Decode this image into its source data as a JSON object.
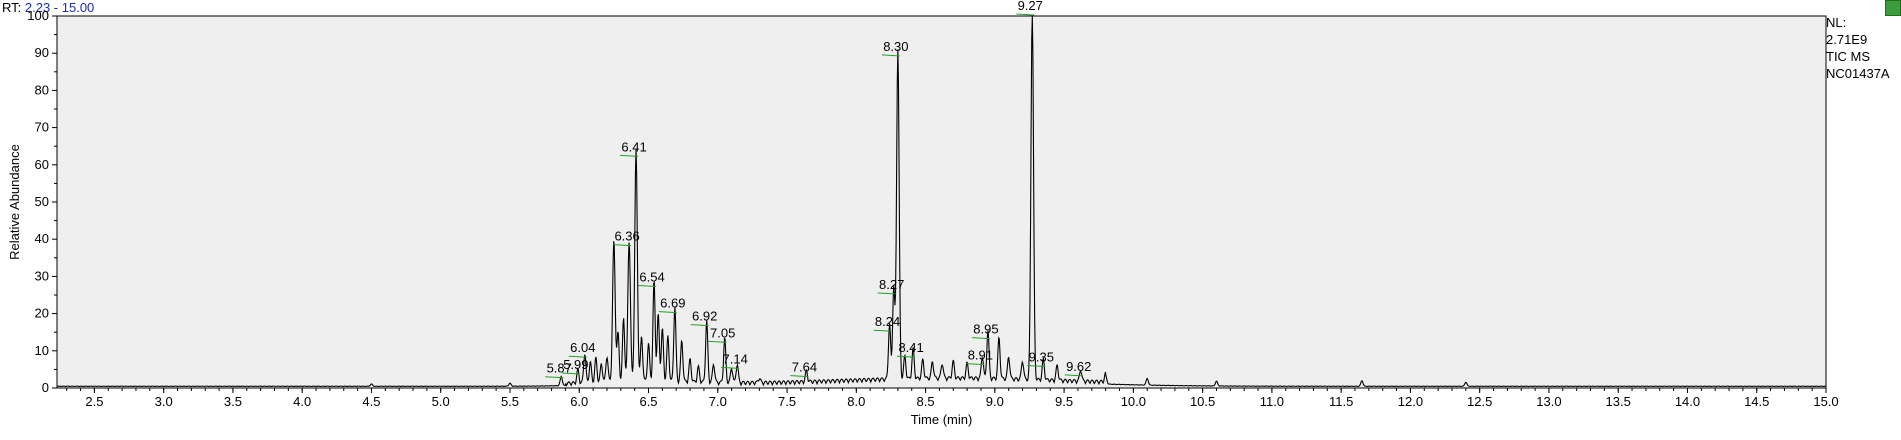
{
  "header": {
    "rt_prefix": "RT:",
    "rt_range": "2.23 - 15.00"
  },
  "side_info": {
    "line1": "NL:",
    "line2": "2.71E9",
    "line3": "TIC  MS",
    "line4": "NC01437A"
  },
  "chart_data": {
    "type": "line",
    "title": "",
    "xlabel": "Time (min)",
    "ylabel": "Relative Abundance",
    "xlim": [
      2.23,
      15.0
    ],
    "ylim": [
      0,
      100
    ],
    "xticks": [
      2.5,
      3.0,
      3.5,
      4.0,
      4.5,
      5.0,
      5.5,
      6.0,
      6.5,
      7.0,
      7.5,
      8.0,
      8.5,
      9.0,
      9.5,
      10.0,
      10.5,
      11.0,
      11.5,
      12.0,
      12.5,
      13.0,
      13.5,
      14.0,
      14.5,
      15.0
    ],
    "xtick_labels": [
      "2.5",
      "3.0",
      "3.5",
      "4.0",
      "4.5",
      "5.0",
      "5.5",
      "6.0",
      "6.5",
      "7.0",
      "7.5",
      "8.0",
      "8.5",
      "9.0",
      "9.5",
      "10.0",
      "10.5",
      "11.0",
      "11.5",
      "12.0",
      "12.5",
      "13.0",
      "13.5",
      "14.0",
      "14.5",
      "15.0"
    ],
    "yticks": [
      0,
      10,
      20,
      30,
      40,
      50,
      60,
      70,
      80,
      90,
      100
    ],
    "ytick_labels": [
      "0",
      "10",
      "20",
      "30",
      "40",
      "50",
      "60",
      "70",
      "80",
      "90",
      "100"
    ],
    "baseline": 0.4,
    "peaks": [
      {
        "rt": 4.5,
        "height": 0.6
      },
      {
        "rt": 5.5,
        "height": 0.8
      },
      {
        "rt": 5.87,
        "height": 2.5
      },
      {
        "rt": 5.99,
        "height": 3.5
      },
      {
        "rt": 6.04,
        "height": 8.0
      },
      {
        "rt": 6.08,
        "height": 5.5
      },
      {
        "rt": 6.12,
        "height": 6.5
      },
      {
        "rt": 6.16,
        "height": 5.0
      },
      {
        "rt": 6.2,
        "height": 7.0
      },
      {
        "rt": 6.25,
        "height": 38.0
      },
      {
        "rt": 6.28,
        "height": 13.0
      },
      {
        "rt": 6.32,
        "height": 17.0
      },
      {
        "rt": 6.36,
        "height": 38.0
      },
      {
        "rt": 6.41,
        "height": 62.0
      },
      {
        "rt": 6.45,
        "height": 12.0
      },
      {
        "rt": 6.5,
        "height": 10.0
      },
      {
        "rt": 6.54,
        "height": 27.0
      },
      {
        "rt": 6.57,
        "height": 18.0
      },
      {
        "rt": 6.6,
        "height": 14.0
      },
      {
        "rt": 6.64,
        "height": 12.0
      },
      {
        "rt": 6.69,
        "height": 20.0
      },
      {
        "rt": 6.74,
        "height": 11.0
      },
      {
        "rt": 6.8,
        "height": 6.0
      },
      {
        "rt": 6.86,
        "height": 4.0
      },
      {
        "rt": 6.92,
        "height": 16.5
      },
      {
        "rt": 6.97,
        "height": 5.0
      },
      {
        "rt": 7.05,
        "height": 12.0
      },
      {
        "rt": 7.1,
        "height": 4.0
      },
      {
        "rt": 7.14,
        "height": 5.0
      },
      {
        "rt": 7.3,
        "height": 1.2
      },
      {
        "rt": 7.64,
        "height": 2.8
      },
      {
        "rt": 8.24,
        "height": 15.0
      },
      {
        "rt": 8.27,
        "height": 25.0
      },
      {
        "rt": 8.3,
        "height": 89.0
      },
      {
        "rt": 8.35,
        "height": 6.0
      },
      {
        "rt": 8.41,
        "height": 8.0
      },
      {
        "rt": 8.48,
        "height": 5.0
      },
      {
        "rt": 8.55,
        "height": 4.5
      },
      {
        "rt": 8.62,
        "height": 4.0
      },
      {
        "rt": 8.7,
        "height": 4.5
      },
      {
        "rt": 8.8,
        "height": 4.0
      },
      {
        "rt": 8.91,
        "height": 6.0
      },
      {
        "rt": 8.95,
        "height": 13.0
      },
      {
        "rt": 9.03,
        "height": 11.0
      },
      {
        "rt": 9.1,
        "height": 6.0
      },
      {
        "rt": 9.2,
        "height": 5.0
      },
      {
        "rt": 9.27,
        "height": 100.0
      },
      {
        "rt": 9.35,
        "height": 5.5
      },
      {
        "rt": 9.45,
        "height": 4.0
      },
      {
        "rt": 9.62,
        "height": 3.0
      },
      {
        "rt": 9.8,
        "height": 2.3
      },
      {
        "rt": 10.1,
        "height": 1.8
      },
      {
        "rt": 10.6,
        "height": 1.3
      },
      {
        "rt": 11.65,
        "height": 1.5
      },
      {
        "rt": 12.4,
        "height": 1.1
      }
    ],
    "peak_labels": [
      {
        "rt": 5.87,
        "y": 2.5,
        "label": "5.87"
      },
      {
        "rt": 5.99,
        "y": 3.5,
        "label": "5.99"
      },
      {
        "rt": 6.04,
        "y": 8.0,
        "label": "6.04"
      },
      {
        "rt": 6.36,
        "y": 38.0,
        "label": "6.36"
      },
      {
        "rt": 6.41,
        "y": 62.0,
        "label": "6.41"
      },
      {
        "rt": 6.54,
        "y": 27.0,
        "label": "6.54"
      },
      {
        "rt": 6.69,
        "y": 20.0,
        "label": "6.69"
      },
      {
        "rt": 6.92,
        "y": 16.5,
        "label": "6.92"
      },
      {
        "rt": 7.05,
        "y": 12.0,
        "label": "7.05"
      },
      {
        "rt": 7.14,
        "y": 5.0,
        "label": "7.14"
      },
      {
        "rt": 7.64,
        "y": 2.8,
        "label": "7.64"
      },
      {
        "rt": 8.24,
        "y": 15.0,
        "label": "8.24"
      },
      {
        "rt": 8.27,
        "y": 25.0,
        "label": "8.27"
      },
      {
        "rt": 8.3,
        "y": 89.0,
        "label": "8.30"
      },
      {
        "rt": 8.41,
        "y": 8.0,
        "label": "8.41"
      },
      {
        "rt": 8.91,
        "y": 6.0,
        "label": "8.91"
      },
      {
        "rt": 8.95,
        "y": 13.0,
        "label": "8.95"
      },
      {
        "rt": 9.27,
        "y": 100.0,
        "label": "9.27"
      },
      {
        "rt": 9.35,
        "y": 5.5,
        "label": "9.35"
      },
      {
        "rt": 9.62,
        "y": 3.0,
        "label": "9.62"
      }
    ],
    "colors": {
      "plot_bg": "#efefef",
      "trace": "#000000",
      "leader": "#22a022",
      "rt_value": "#1a2bb8"
    }
  }
}
